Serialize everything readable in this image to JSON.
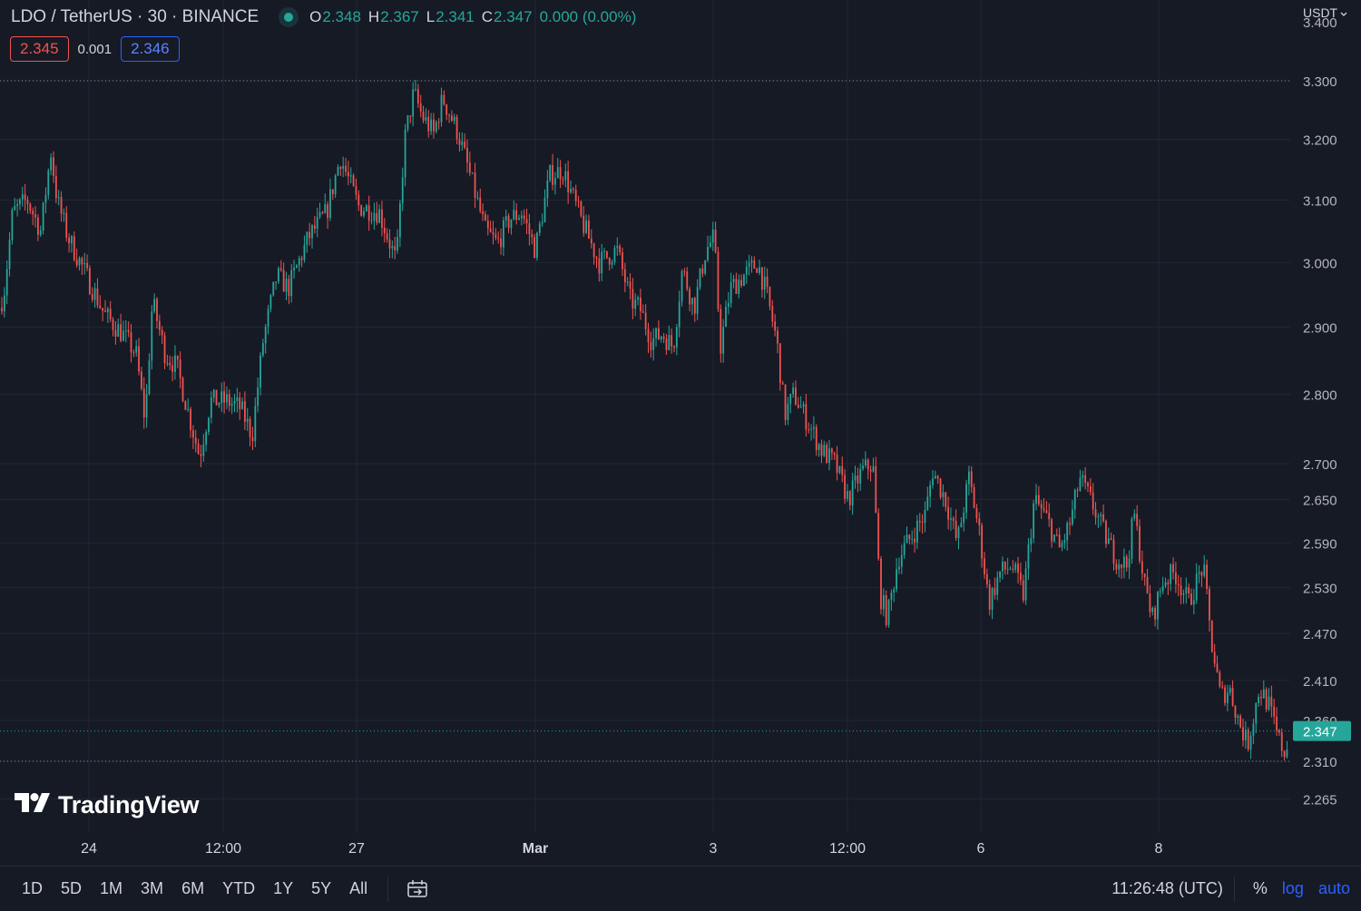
{
  "legend": {
    "symbol": "LDO / TetherUS · 30 · BINANCE",
    "ohlc": [
      {
        "k": "O",
        "v": "2.348"
      },
      {
        "k": "H",
        "v": "2.367"
      },
      {
        "k": "L",
        "v": "2.341"
      },
      {
        "k": "C",
        "v": "2.347"
      }
    ],
    "change": "0.000 (0.00%)"
  },
  "quote": {
    "sell": "2.345",
    "spread": "0.001",
    "buy": "2.346"
  },
  "currency": "USDT",
  "logo": "TradingView",
  "price_axis": {
    "labels": [
      "3.300",
      "3.200",
      "3.100",
      "3.000",
      "2.900",
      "2.800",
      "2.700",
      "2.650",
      "2.590",
      "2.530",
      "2.470",
      "2.410",
      "2.360",
      "2.310",
      "2.265"
    ],
    "partial_top": "3.400",
    "last_price": "2.347"
  },
  "time_axis": [
    "24",
    "12:00",
    "27",
    "Mar",
    "3",
    "12:00",
    "6",
    "8"
  ],
  "toolbar": {
    "ranges": [
      "1D",
      "5D",
      "1M",
      "3M",
      "6M",
      "YTD",
      "1Y",
      "5Y",
      "All"
    ],
    "clock": "11:26:48 (UTC)",
    "percent": "%",
    "log": "log",
    "auto": "auto"
  },
  "colors": {
    "background": "#161a25",
    "up": "#26a69a",
    "down": "#ef5350",
    "grid": "#232733",
    "text": "#d1d4dc"
  },
  "chart_data": {
    "type": "candlestick",
    "title": "LDO / TetherUS · 30 · BINANCE",
    "interval": "30",
    "ylabel": "USDT",
    "ylim": [
      2.24,
      3.43
    ],
    "scale": "log",
    "grid": true,
    "x_ticks": [
      "24",
      "12:00",
      "27",
      "Mar",
      "3",
      "12:00",
      "6",
      "8"
    ],
    "y_ticks": [
      3.3,
      3.2,
      3.1,
      3.0,
      2.9,
      2.8,
      2.7,
      2.65,
      2.59,
      2.53,
      2.47,
      2.41,
      2.36,
      2.31,
      2.265
    ],
    "last": {
      "open": 2.348,
      "high": 2.367,
      "low": 2.341,
      "close": 2.347
    },
    "close_path": [
      [
        0,
        2.93
      ],
      [
        5,
        2.96
      ],
      [
        14,
        3.08
      ],
      [
        30,
        3.1
      ],
      [
        45,
        3.05
      ],
      [
        56,
        3.18
      ],
      [
        63,
        3.1
      ],
      [
        75,
        3.04
      ],
      [
        95,
        2.98
      ],
      [
        115,
        2.92
      ],
      [
        135,
        2.89
      ],
      [
        150,
        2.86
      ],
      [
        160,
        2.76
      ],
      [
        168,
        2.94
      ],
      [
        182,
        2.86
      ],
      [
        195,
        2.84
      ],
      [
        210,
        2.76
      ],
      [
        220,
        2.71
      ],
      [
        232,
        2.79
      ],
      [
        250,
        2.79
      ],
      [
        265,
        2.78
      ],
      [
        278,
        2.74
      ],
      [
        290,
        2.88
      ],
      [
        305,
        2.98
      ],
      [
        318,
        2.96
      ],
      [
        340,
        3.04
      ],
      [
        360,
        3.08
      ],
      [
        375,
        3.17
      ],
      [
        395,
        3.09
      ],
      [
        418,
        3.08
      ],
      [
        437,
        3.0
      ],
      [
        446,
        3.2
      ],
      [
        456,
        3.28
      ],
      [
        465,
        3.24
      ],
      [
        478,
        3.21
      ],
      [
        488,
        3.27
      ],
      [
        505,
        3.21
      ],
      [
        520,
        3.13
      ],
      [
        535,
        3.05
      ],
      [
        548,
        3.03
      ],
      [
        562,
        3.07
      ],
      [
        575,
        3.08
      ],
      [
        590,
        3.02
      ],
      [
        606,
        3.14
      ],
      [
        620,
        3.15
      ],
      [
        640,
        3.07
      ],
      [
        660,
        3.0
      ],
      [
        680,
        3.02
      ],
      [
        695,
        2.94
      ],
      [
        705,
        2.93
      ],
      [
        718,
        2.88
      ],
      [
        730,
        2.89
      ],
      [
        742,
        2.87
      ],
      [
        752,
        2.99
      ],
      [
        765,
        2.93
      ],
      [
        778,
        3.02
      ],
      [
        787,
        3.04
      ],
      [
        794,
        2.87
      ],
      [
        805,
        2.96
      ],
      [
        820,
        2.98
      ],
      [
        835,
        3.0
      ],
      [
        845,
        2.95
      ],
      [
        856,
        2.88
      ],
      [
        865,
        2.77
      ],
      [
        875,
        2.8
      ],
      [
        890,
        2.76
      ],
      [
        905,
        2.72
      ],
      [
        920,
        2.7
      ],
      [
        935,
        2.65
      ],
      [
        950,
        2.69
      ],
      [
        962,
        2.7
      ],
      [
        970,
        2.52
      ],
      [
        978,
        2.49
      ],
      [
        990,
        2.57
      ],
      [
        1005,
        2.6
      ],
      [
        1020,
        2.63
      ],
      [
        1028,
        2.69
      ],
      [
        1042,
        2.65
      ],
      [
        1055,
        2.59
      ],
      [
        1068,
        2.68
      ],
      [
        1080,
        2.6
      ],
      [
        1090,
        2.51
      ],
      [
        1102,
        2.55
      ],
      [
        1115,
        2.56
      ],
      [
        1128,
        2.52
      ],
      [
        1140,
        2.65
      ],
      [
        1155,
        2.62
      ],
      [
        1168,
        2.58
      ],
      [
        1180,
        2.62
      ],
      [
        1190,
        2.68
      ],
      [
        1205,
        2.64
      ],
      [
        1218,
        2.6
      ],
      [
        1230,
        2.57
      ],
      [
        1242,
        2.56
      ],
      [
        1250,
        2.63
      ],
      [
        1262,
        2.53
      ],
      [
        1270,
        2.49
      ],
      [
        1282,
        2.54
      ],
      [
        1295,
        2.55
      ],
      [
        1310,
        2.51
      ],
      [
        1326,
        2.56
      ],
      [
        1335,
        2.46
      ],
      [
        1345,
        2.39
      ],
      [
        1355,
        2.4
      ],
      [
        1365,
        2.36
      ],
      [
        1375,
        2.33
      ],
      [
        1388,
        2.4
      ],
      [
        1398,
        2.38
      ],
      [
        1408,
        2.34
      ],
      [
        1416,
        2.32
      ],
      [
        1421,
        2.347
      ]
    ]
  }
}
